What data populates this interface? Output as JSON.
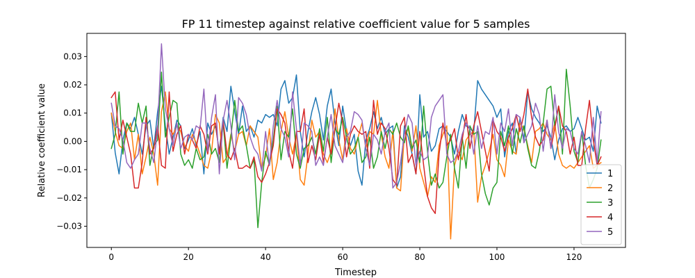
{
  "chart_data": {
    "type": "line",
    "title": "FP 11 timestep against relative coefficient value for 5 samples",
    "xlabel": "Timestep",
    "ylabel": "Relative coefficient value",
    "xlim": [
      -6.35,
      133.35
    ],
    "ylim": [
      -0.0375,
      0.0382
    ],
    "xticks": [
      0,
      20,
      40,
      60,
      80,
      100,
      120
    ],
    "xtick_labels": [
      "0",
      "20",
      "40",
      "60",
      "80",
      "100",
      "120"
    ],
    "yticks": [
      -0.03,
      -0.02,
      -0.01,
      0.0,
      0.01,
      0.02,
      0.03
    ],
    "ytick_labels": [
      "−0.03",
      "−0.02",
      "−0.01",
      "0.00",
      "0.01",
      "0.02",
      "0.03"
    ],
    "legend_position": "bottom-right",
    "grid": false,
    "x": [
      0,
      1,
      2,
      3,
      4,
      5,
      6,
      7,
      8,
      9,
      10,
      11,
      12,
      13,
      14,
      15,
      16,
      17,
      18,
      19,
      20,
      21,
      22,
      23,
      24,
      25,
      26,
      27,
      28,
      29,
      30,
      31,
      32,
      33,
      34,
      35,
      36,
      37,
      38,
      39,
      40,
      41,
      42,
      43,
      44,
      45,
      46,
      47,
      48,
      49,
      50,
      51,
      52,
      53,
      54,
      55,
      56,
      57,
      58,
      59,
      60,
      61,
      62,
      63,
      64,
      65,
      66,
      67,
      68,
      69,
      70,
      71,
      72,
      73,
      74,
      75,
      76,
      77,
      78,
      79,
      80,
      81,
      82,
      83,
      84,
      85,
      86,
      87,
      88,
      89,
      90,
      91,
      92,
      93,
      94,
      95,
      96,
      97,
      98,
      99,
      100,
      101,
      102,
      103,
      104,
      105,
      106,
      107,
      108,
      109,
      110,
      111,
      112,
      113,
      114,
      115,
      116,
      117,
      118,
      119,
      120,
      121,
      122,
      123,
      124,
      125,
      126,
      127
    ],
    "series": [
      {
        "name": "1",
        "color": "#1f77b4",
        "values": [
          0.01,
          -0.004,
          -0.0115,
          0.0005,
          0.0065,
          0.0045,
          0.0085,
          0.0025,
          -0.0045,
          0.0055,
          0.0075,
          -0.0025,
          0.0105,
          0.0195,
          0.0055,
          -0.0045,
          0.0015,
          0.0075,
          0.0055,
          -0.0025,
          0.0005,
          0.0045,
          -0.0015,
          0.0035,
          -0.0115,
          0.0065,
          0.0025,
          0.0055,
          -0.0035,
          0.0085,
          0.0035,
          0.0195,
          0.0105,
          0.0025,
          0.0125,
          0.0035,
          0.0055,
          0.0015,
          0.0075,
          0.0065,
          0.0095,
          0.0085,
          0.0095,
          0.0055,
          0.0185,
          0.0215,
          0.0135,
          0.0155,
          0.0235,
          0.0035,
          -0.0055,
          0.0035,
          0.0105,
          0.0155,
          0.0095,
          0.0005,
          0.0125,
          0.0185,
          0.0065,
          -0.0015,
          0.0125,
          0.0035,
          -0.0015,
          0.0025,
          -0.0105,
          -0.0155,
          0.0005,
          0.0045,
          0.0105,
          0.0045,
          0.0085,
          0.0025,
          0.0045,
          0.0055,
          -0.0165,
          -0.0125,
          0.0055,
          0.0015,
          -0.0045,
          -0.0115,
          0.0165,
          0.0015,
          0.0035,
          -0.0035,
          -0.0015,
          0.0045,
          0.0055,
          0.0035,
          0.0015,
          -0.0045,
          0.0035,
          0.0095,
          0.0055,
          0.0045,
          0.0035,
          0.0215,
          0.0185,
          0.0165,
          0.0145,
          0.0125,
          0.0085,
          0.0115,
          -0.0055,
          0.0035,
          0.0065,
          -0.0045,
          0.0085,
          0.0005,
          0.0175,
          0.0115,
          0.0085,
          0.0065,
          0.0035,
          0.0055,
          0.0015,
          -0.0065,
          0.0005,
          0.0045,
          0.0055,
          0.0035,
          0.0045,
          0.0085,
          0.0045,
          0.0005,
          0.0015,
          -0.0035,
          0.0125,
          0.0065
        ]
      },
      {
        "name": "2",
        "color": "#ff7f0e",
        "values": [
          0.01,
          0.0035,
          -0.0015,
          -0.0025,
          0.0035,
          0.0065,
          -0.0065,
          0.0025,
          -0.0115,
          -0.0055,
          0.0015,
          -0.0045,
          -0.0155,
          0.0105,
          0.0175,
          0.0045,
          0.0025,
          0.0055,
          0.0035,
          -0.0015,
          -0.0035,
          0.0025,
          -0.0005,
          -0.0045,
          -0.0085,
          -0.0095,
          -0.0035,
          0.0095,
          0.0065,
          -0.0075,
          -0.0055,
          0.0025,
          -0.0035,
          0.0025,
          0.0035,
          -0.0015,
          0.0055,
          0.0035,
          0.0015,
          -0.0095,
          -0.0055,
          0.0045,
          -0.0135,
          -0.0075,
          0.0035,
          0.0105,
          0.0015,
          -0.0045,
          0.0025,
          -0.0135,
          -0.0155,
          -0.0045,
          0.0075,
          0.0015,
          0.0035,
          -0.0045,
          -0.0075,
          -0.0035,
          0.0115,
          0.0005,
          -0.0065,
          0.0045,
          -0.0025,
          -0.0045,
          0.0015,
          0.0065,
          -0.0025,
          0.0035,
          0.0025,
          0.0145,
          0.0025,
          -0.0055,
          -0.0095,
          0.0035,
          -0.0165,
          -0.0175,
          0.0025,
          0.0045,
          -0.0035,
          0.0055,
          -0.0095,
          -0.0145,
          -0.0195,
          -0.0125,
          -0.0145,
          -0.0015,
          0.0025,
          0.0055,
          -0.0345,
          -0.0085,
          -0.0035,
          -0.0065,
          0.0005,
          0.0025,
          0.0035,
          -0.0215,
          -0.0125,
          -0.0085,
          -0.0035,
          0.0025,
          -0.0065,
          -0.0085,
          -0.0125,
          0.0005,
          -0.0035,
          -0.0045,
          0.0065,
          0.0045,
          -0.0015,
          -0.0075,
          0.0035,
          0.0045,
          0.0065,
          0.0025,
          0.0005,
          0.0065,
          -0.0045,
          -0.0085,
          -0.0095,
          -0.0085,
          -0.0095,
          -0.0075,
          -0.0055,
          -0.0035,
          -0.0015,
          -0.0095,
          -0.0085,
          -0.0075
        ]
      },
      {
        "name": "3",
        "color": "#2ca02c",
        "values": [
          -0.0025,
          0.0025,
          0.0175,
          -0.0045,
          0.0065,
          0.0035,
          0.0035,
          0.0135,
          0.0065,
          0.0125,
          -0.0085,
          -0.0015,
          0.0005,
          0.0245,
          0.0015,
          0.0085,
          0.0145,
          0.0135,
          -0.0045,
          -0.0085,
          -0.0065,
          -0.0095,
          -0.0025,
          -0.0065,
          -0.0055,
          0.0025,
          -0.0045,
          -0.0025,
          -0.0075,
          0.0065,
          -0.0095,
          0.0015,
          0.0145,
          0.0035,
          0.0055,
          -0.0015,
          -0.0095,
          -0.0065,
          -0.0305,
          -0.0145,
          -0.0035,
          -0.0085,
          0.0005,
          0.0125,
          -0.0065,
          0.0035,
          0.0015,
          0.0115,
          -0.0045,
          -0.0095,
          -0.0025,
          -0.0015,
          0.0015,
          -0.0045,
          0.0045,
          -0.0035,
          0.0085,
          -0.0075,
          0.0045,
          0.0025,
          0.0085,
          0.0015,
          -0.0045,
          -0.0025,
          0.0015,
          -0.0075,
          -0.0055,
          0.0015,
          -0.0095,
          -0.0055,
          0.0035,
          -0.0025,
          0.0045,
          0.0025,
          0.0065,
          0.0015,
          -0.0005,
          0.0055,
          -0.0025,
          0.0005,
          -0.0075,
          0.0125,
          -0.0035,
          -0.0155,
          -0.0115,
          -0.0165,
          -0.0145,
          -0.0055,
          0.0025,
          -0.0095,
          -0.0165,
          0.0015,
          -0.0095,
          0.0055,
          0.0025,
          0.0035,
          -0.0115,
          -0.0185,
          -0.0225,
          -0.0165,
          -0.0145,
          0.0035,
          -0.0015,
          0.0055,
          -0.0045,
          0.0045,
          -0.0005,
          0.0055,
          -0.0025,
          -0.0085,
          -0.0095,
          -0.0035,
          0.0065,
          0.0185,
          0.0195,
          0.0055,
          0.0125,
          -0.0045,
          0.0255,
          0.0125,
          -0.0035,
          -0.0075,
          0.0035,
          -0.0085,
          -0.0165,
          -0.0135,
          -0.0095,
          0.0005
        ]
      },
      {
        "name": "4",
        "color": "#d62728",
        "values": [
          0.0155,
          0.0175,
          0.0005,
          0.0075,
          0.0015,
          -0.0045,
          -0.0165,
          -0.0165,
          -0.0075,
          0.0085,
          -0.0045,
          -0.0025,
          0.0055,
          -0.0085,
          -0.0095,
          0.0175,
          -0.0035,
          0.0025,
          0.0055,
          -0.0045,
          0.0025,
          0.0005,
          -0.0025,
          0.0055,
          0.0025,
          -0.0045,
          0.0055,
          0.0065,
          -0.0045,
          0.0075,
          -0.0045,
          -0.0065,
          -0.0025,
          -0.0095,
          -0.0095,
          -0.0085,
          -0.0095,
          -0.0055,
          -0.0125,
          -0.0145,
          -0.0115,
          -0.0075,
          -0.0015,
          0.0115,
          0.0095,
          0.0065,
          -0.0035,
          -0.0095,
          0.0035,
          0.0035,
          0.0115,
          -0.0075,
          -0.0015,
          -0.0065,
          0.0025,
          -0.0075,
          0.0015,
          -0.0045,
          0.0045,
          0.0135,
          0.0065,
          -0.0055,
          0.0025,
          0.0055,
          0.0035,
          0.0025,
          0.0035,
          -0.0095,
          0.0145,
          0.0025,
          0.0065,
          0.0045,
          -0.0025,
          -0.0135,
          -0.0155,
          0.0055,
          0.0085,
          -0.0075,
          -0.0045,
          -0.0115,
          0.0035,
          -0.0085,
          -0.0195,
          -0.0235,
          -0.0255,
          -0.0045,
          0.0065,
          -0.0015,
          0.0005,
          0.0045,
          -0.0065,
          0.0005,
          0.0095,
          -0.0025,
          0.0055,
          0.0105,
          0.0035,
          -0.0035,
          -0.0105,
          0.0075,
          0.0035,
          0.0015,
          -0.0035,
          0.0015,
          0.0045,
          0.0095,
          0.0035,
          0.0095,
          0.0185,
          0.0085,
          0.0015,
          -0.0015,
          0.0005,
          0.0075,
          -0.0025,
          0.0045,
          0.0125,
          0.0055,
          0.0035,
          -0.0045,
          0.0015,
          -0.0085,
          -0.0085,
          0.0045,
          0.0145,
          0.0005,
          -0.0085,
          -0.0055
        ]
      },
      {
        "name": "5",
        "color": "#9467bd",
        "values": [
          0.0135,
          0.0055,
          0.0045,
          0.0005,
          -0.0075,
          -0.0095,
          -0.0065,
          -0.0045,
          0.0065,
          0.0065,
          -0.0025,
          -0.0075,
          0.0045,
          0.0345,
          0.0115,
          0.0045,
          -0.0015,
          0.0065,
          -0.0025,
          0.0015,
          0.0025,
          0.0005,
          0.0055,
          0.0045,
          0.0185,
          -0.0035,
          0.0085,
          0.0165,
          -0.0115,
          0.0075,
          0.0145,
          0.0055,
          -0.0065,
          0.0155,
          0.0135,
          0.0095,
          0.0015,
          -0.0025,
          -0.0045,
          -0.0105,
          0.0035,
          -0.0085,
          0.0055,
          0.0145,
          0.0045,
          0.0015,
          -0.0055,
          0.0175,
          0.0045,
          -0.0085,
          0.0065,
          0.0055,
          0.0035,
          -0.0085,
          -0.0055,
          -0.0085,
          0.0015,
          0.0095,
          -0.0015,
          -0.0045,
          -0.0075,
          0.0015,
          0.0035,
          0.0105,
          0.0095,
          0.0075,
          -0.0025,
          -0.0085,
          0.0025,
          0.0005,
          -0.0045,
          0.0035,
          0.0065,
          -0.0165,
          -0.0145,
          -0.0075,
          0.0025,
          0.0095,
          0.0065,
          -0.0085,
          -0.0035,
          -0.0065,
          -0.0055,
          0.0085,
          0.0125,
          0.0145,
          0.0165,
          -0.0045,
          -0.0075,
          -0.0065,
          -0.0035,
          0.0025,
          0.0065,
          0.0045,
          -0.0045,
          0.0055,
          -0.0025,
          0.0035,
          0.0025,
          0.0085,
          -0.0045,
          0.0065,
          0.0035,
          0.0115,
          -0.0015,
          0.0095,
          0.0085,
          -0.0005,
          0.0025,
          0.0055,
          0.0135,
          0.0095,
          -0.0035,
          0.0075,
          -0.0025,
          0.0165,
          0.0035,
          -0.0025,
          0.0045,
          0.0035,
          -0.0025,
          -0.0045,
          0.0035,
          -0.0015,
          -0.0075,
          0.0085,
          -0.0075,
          0.0105
        ]
      }
    ]
  }
}
